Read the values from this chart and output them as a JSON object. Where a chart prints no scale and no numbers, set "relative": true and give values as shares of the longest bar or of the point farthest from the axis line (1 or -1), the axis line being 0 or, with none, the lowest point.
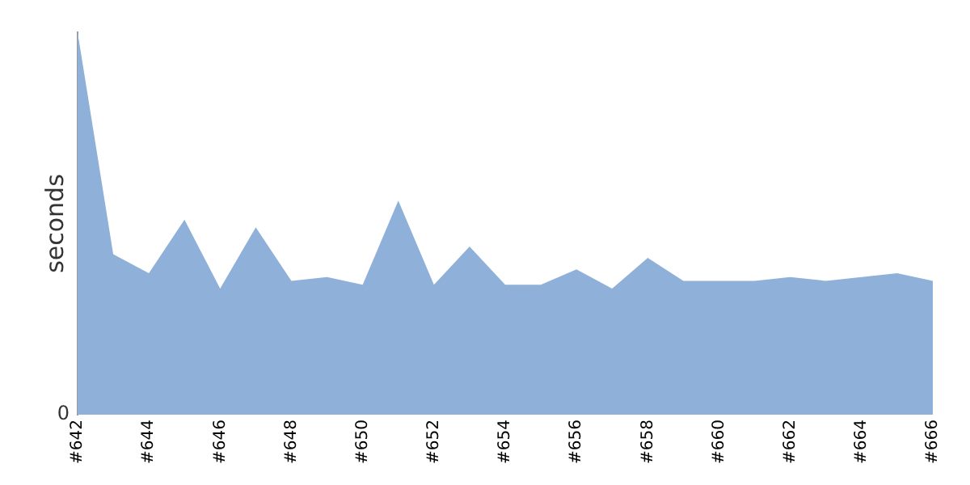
{
  "chart_data": {
    "type": "area",
    "ylabel": "seconds",
    "relative": true,
    "annotations": [
      "0"
    ],
    "categories": [
      "#642",
      null,
      "#644",
      null,
      "#646",
      null,
      "#648",
      null,
      "#650",
      null,
      "#652",
      null,
      "#654",
      null,
      "#656",
      null,
      "#658",
      null,
      "#660",
      null,
      "#662",
      null,
      "#664",
      null,
      "#666"
    ],
    "series": [
      {
        "color": "#8fb0d9",
        "values": [
          1,
          0.42,
          0.37,
          0.51,
          0.33,
          0.49,
          0.35,
          0.36,
          0.34,
          0.56,
          0.34,
          0.44,
          0.34,
          0.34,
          0.38,
          0.33,
          0.41,
          0.35,
          0.35,
          0.35,
          0.36,
          0.35,
          0.36,
          0.37,
          0.35
        ]
      }
    ]
  }
}
